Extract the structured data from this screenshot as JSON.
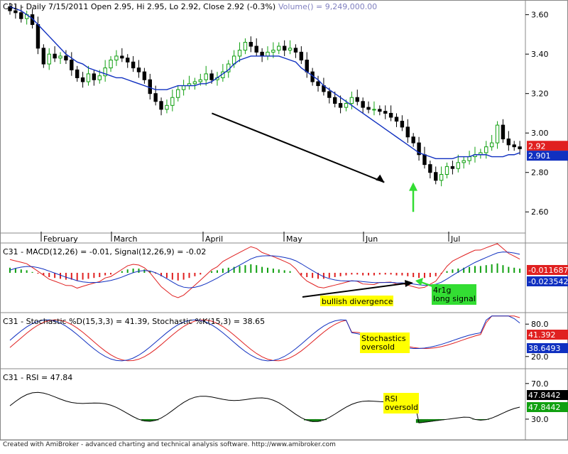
{
  "chart_data": [
    {
      "type": "candlestick",
      "title": "C31 - Daily 7/15/2011 Open 2.95, Hi 2.95, Lo 2.92, Close 2.92 (-0.3%)",
      "volume_label": "Volume() = 9,249,000.00",
      "x_labels": [
        "February",
        "March",
        "April",
        "May",
        "Jun",
        "Jul"
      ],
      "y_ticks": [
        3.6,
        3.4,
        3.2,
        3.0,
        2.8,
        2.6
      ],
      "ylim": [
        2.5,
        3.66
      ],
      "price_tag": {
        "value": "2.92",
        "color": "#e02020"
      },
      "ma_tag": {
        "value": "2.901",
        "color": "#1030c0"
      },
      "closes": [
        3.62,
        3.61,
        3.58,
        3.6,
        3.55,
        3.43,
        3.35,
        3.4,
        3.38,
        3.39,
        3.37,
        3.32,
        3.28,
        3.26,
        3.3,
        3.27,
        3.29,
        3.33,
        3.37,
        3.39,
        3.38,
        3.36,
        3.33,
        3.31,
        3.27,
        3.2,
        3.16,
        3.12,
        3.14,
        3.18,
        3.22,
        3.24,
        3.25,
        3.26,
        3.27,
        3.3,
        3.27,
        3.28,
        3.31,
        3.35,
        3.39,
        3.42,
        3.46,
        3.44,
        3.41,
        3.39,
        3.41,
        3.42,
        3.44,
        3.42,
        3.43,
        3.41,
        3.37,
        3.31,
        3.26,
        3.24,
        3.21,
        3.18,
        3.15,
        3.13,
        3.15,
        3.18,
        3.16,
        3.13,
        3.12,
        3.12,
        3.11,
        3.1,
        3.08,
        3.06,
        3.03,
        2.98,
        2.95,
        2.89,
        2.84,
        2.8,
        2.76,
        2.79,
        2.83,
        2.82,
        2.85,
        2.86,
        2.88,
        2.89,
        2.9,
        2.93,
        2.95,
        3.04,
        2.97,
        2.94,
        2.93,
        2.92
      ],
      "ma": [
        3.64,
        3.63,
        3.62,
        3.6,
        3.58,
        3.55,
        3.52,
        3.49,
        3.46,
        3.43,
        3.4,
        3.38,
        3.36,
        3.35,
        3.33,
        3.32,
        3.31,
        3.3,
        3.29,
        3.28,
        3.28,
        3.27,
        3.26,
        3.25,
        3.24,
        3.23,
        3.22,
        3.22,
        3.22,
        3.23,
        3.24,
        3.24,
        3.24,
        3.24,
        3.25,
        3.25,
        3.26,
        3.28,
        3.3,
        3.32,
        3.35,
        3.37,
        3.38,
        3.39,
        3.39,
        3.39,
        3.39,
        3.39,
        3.39,
        3.38,
        3.37,
        3.36,
        3.33,
        3.31,
        3.29,
        3.27,
        3.24,
        3.22,
        3.2,
        3.18,
        3.16,
        3.14,
        3.12,
        3.1,
        3.08,
        3.06,
        3.04,
        3.02,
        3.0,
        2.98,
        2.96,
        2.94,
        2.92,
        2.9,
        2.89,
        2.88,
        2.87,
        2.87,
        2.87,
        2.87,
        2.88,
        2.88,
        2.88,
        2.89,
        2.89,
        2.89,
        2.88,
        2.88,
        2.88,
        2.89,
        2.89,
        2.9
      ],
      "annotations": [],
      "arrow_down": {
        "from_x": 0.4,
        "to_x": 0.73,
        "from_price": 3.1,
        "to_price": 2.75
      },
      "signal_arrow_price": 2.6
    },
    {
      "type": "macd",
      "title": "C31 - MACD(12,26) = -0.01, Signal(12,26,9) = -0.02",
      "macd_tag": {
        "value": "-0.011687",
        "color": "#e02020"
      },
      "signal_tag": {
        "value": "-0.023542",
        "color": "#1030c0"
      },
      "hist": [
        0.6,
        0.5,
        0.4,
        0.3,
        0.1,
        -0.1,
        -0.3,
        -0.5,
        -0.6,
        -0.7,
        -0.8,
        -0.8,
        -0.9,
        -0.8,
        -0.7,
        -0.6,
        -0.5,
        -0.3,
        -0.2,
        0.0,
        0.2,
        0.4,
        0.5,
        0.5,
        0.4,
        0.2,
        -0.1,
        -0.4,
        -0.6,
        -0.8,
        -0.9,
        -0.8,
        -0.6,
        -0.4,
        -0.2,
        0.0,
        0.2,
        0.3,
        0.5,
        0.6,
        0.7,
        0.8,
        0.9,
        1.0,
        0.9,
        0.7,
        0.6,
        0.5,
        0.4,
        0.3,
        0.2,
        0.0,
        -0.3,
        -0.5,
        -0.6,
        -0.7,
        -0.7,
        -0.6,
        -0.5,
        -0.4,
        -0.3,
        -0.2,
        -0.2,
        -0.3,
        -0.3,
        -0.3,
        -0.2,
        -0.2,
        -0.2,
        -0.3,
        -0.3,
        -0.4,
        -0.5,
        -0.6,
        -0.6,
        -0.5,
        -0.4,
        -0.1,
        0.2,
        0.4,
        0.5,
        0.6,
        0.7,
        0.8,
        0.8,
        0.9,
        1.0,
        1.1,
        0.9,
        0.7,
        0.6,
        0.5
      ],
      "annotations": [
        {
          "text": "bullish divergence",
          "bg": "#ffff00"
        },
        {
          "text": "4r1g long signal",
          "bg": "#33dd33"
        }
      ]
    },
    {
      "type": "stochastic",
      "title": "C31 - Stochastic %D(15,3,3) = 41.39, Stochastic %K(15,3) = 38.65",
      "y_ticks": [
        80.0,
        20.0
      ],
      "d_tag": {
        "value": "41.392",
        "color": "#e02020"
      },
      "k_tag": {
        "value": "38.6493",
        "color": "#1030c0"
      },
      "annotations": [
        {
          "text": "Stochastics oversold",
          "bg": "#ffff00"
        }
      ]
    },
    {
      "type": "rsi",
      "title": "C31 - RSI = 47.84",
      "y_ticks": [
        70.0,
        30.0
      ],
      "tags": [
        {
          "value": "47.8442",
          "color": "#000000"
        },
        {
          "value": "47.8442",
          "color": "#10a010"
        }
      ],
      "annotations": [
        {
          "text": "RSI oversold",
          "bg": "#ffff00"
        }
      ]
    }
  ],
  "footer": "Created with AmiBroker - advanced charting and technical analysis software. http://www.amibroker.com"
}
